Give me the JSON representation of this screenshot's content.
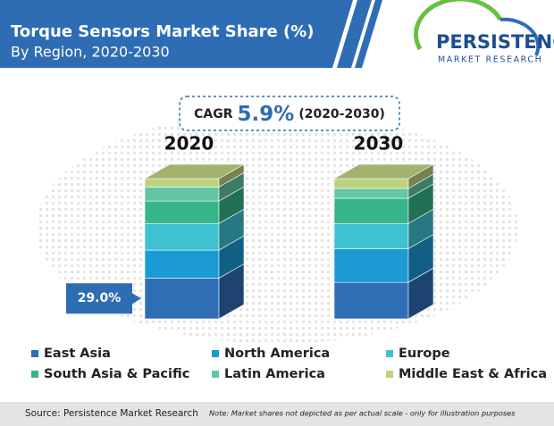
{
  "chart_data": {
    "type": "bar",
    "stacked": true,
    "title": "Torque Sensors Market Share (%)",
    "subtitle": "By Region, 2020-2030",
    "categories": [
      "2020",
      "2030"
    ],
    "series": [
      {
        "name": "East Asia",
        "color": "#2f6db5",
        "values": [
          29,
          26
        ],
        "value_labels": [
          "29.0%",
          null
        ]
      },
      {
        "name": "North America",
        "color": "#1b9ad6",
        "values": [
          20,
          24
        ]
      },
      {
        "name": "Europe",
        "color": "#3ec2d2",
        "values": [
          19,
          18
        ]
      },
      {
        "name": "South Asia & Pacific",
        "color": "#36b58b",
        "values": [
          16,
          18
        ]
      },
      {
        "name": "Latin America",
        "color": "#63c5a7",
        "values": [
          10,
          7
        ]
      },
      {
        "name": "Middle East & Africa",
        "color": "#bdd27f",
        "values": [
          6,
          7
        ]
      }
    ]
  },
  "logo": {
    "name": "PERSISTENCE",
    "tagline": "MARKET RESEARCH"
  },
  "cagr": {
    "label": "CAGR",
    "value": "5.9%",
    "period": "(2020-2030)"
  },
  "footer": {
    "source": "Source: Persistence Market Research",
    "note": "Note: Market shares not depicted as per actual scale - only for illustration purposes"
  }
}
